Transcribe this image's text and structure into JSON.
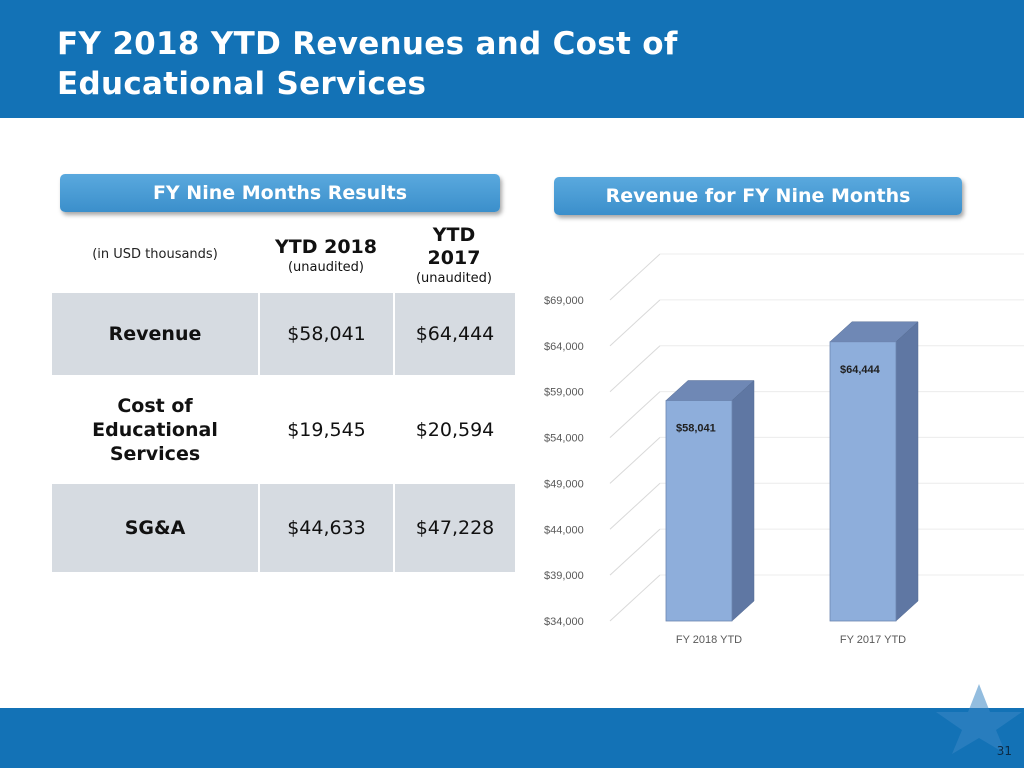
{
  "slide": {
    "title": "FY 2018 YTD Revenues and Cost of\nEducational Services",
    "page_number": "31"
  },
  "table": {
    "section_label": "FY Nine Months Results",
    "units": "(in USD thousands)",
    "columns": [
      {
        "title": "YTD 2018",
        "note": "(unaudited)"
      },
      {
        "title": "YTD\n2017",
        "note": "(unaudited)"
      }
    ],
    "rows": [
      {
        "label": "Revenue",
        "ytd2018": "$58,041",
        "ytd2017": "$64,444"
      },
      {
        "label": "Cost of\nEducational\nServices",
        "ytd2018": "$19,545",
        "ytd2017": "$20,594"
      },
      {
        "label": "SG&A",
        "ytd2018": "$44,633",
        "ytd2017": "$47,228"
      }
    ]
  },
  "chart_section": {
    "label": "Revenue for FY Nine Months"
  },
  "colors": {
    "header": "#1372b6",
    "bar_front": "#8eaedb",
    "bar_side": "#5f77a3",
    "bar_top": "#6f88b5"
  },
  "chart_data": {
    "type": "bar",
    "title": "Revenue for FY Nine Months",
    "categories": [
      "FY 2018 YTD",
      "FY 2017 YTD"
    ],
    "values": [
      58041,
      64444
    ],
    "data_labels": [
      "$58,041",
      "$64,444"
    ],
    "ylim": [
      34000,
      69000
    ],
    "yticks": [
      34000,
      39000,
      44000,
      49000,
      54000,
      59000,
      64000,
      69000
    ],
    "ytick_labels": [
      "$34,000",
      "$39,000",
      "$44,000",
      "$49,000",
      "$54,000",
      "$59,000",
      "$64,000",
      "$69,000"
    ],
    "xlabel": "",
    "ylabel": "",
    "grid": true,
    "style": "3d"
  }
}
